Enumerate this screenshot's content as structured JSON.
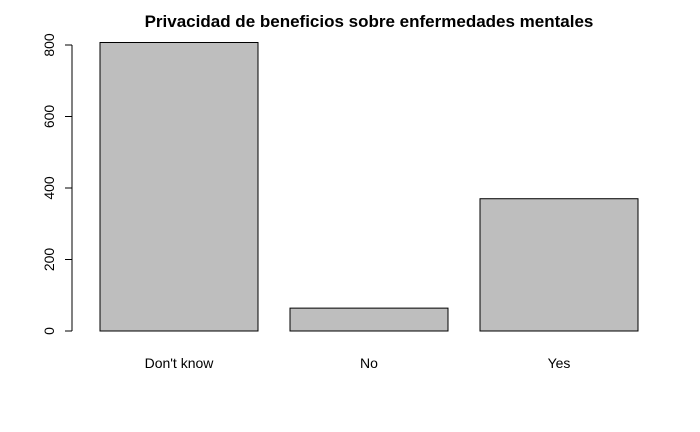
{
  "chart_data": {
    "type": "bar",
    "title": "Privacidad de beneficios sobre enfermedades mentales",
    "xlabel": "",
    "ylabel": "",
    "categories": [
      "Don't know",
      "No",
      "Yes"
    ],
    "values": [
      807,
      64,
      370
    ],
    "ylim": [
      0,
      800
    ],
    "yticks": [
      0,
      200,
      400,
      600,
      800
    ],
    "grid": false,
    "legend": "none",
    "colors": {
      "bar_fill": "#bebebe",
      "bar_stroke": "#000000"
    }
  }
}
